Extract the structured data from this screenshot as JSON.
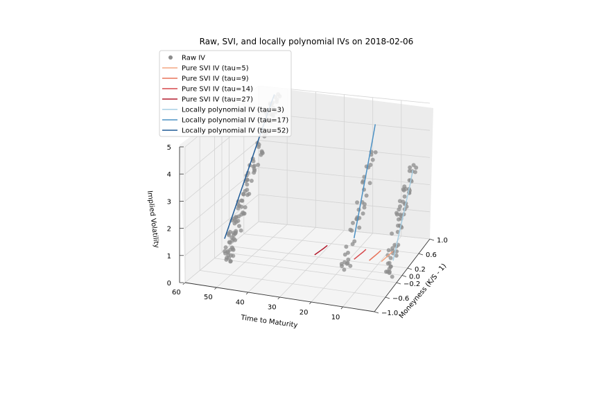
{
  "chart_data": {
    "type": "scatter",
    "title": "Raw, SVI, and locally polynomial IVs on 2018-02-06",
    "xlabel": "Time to Maturity",
    "ylabel": "Moneyness (K/S - 1)",
    "zlabel": "Implied Volatility",
    "x_ticks": [
      "60",
      "50",
      "40",
      "30",
      "20",
      "10"
    ],
    "y_ticks": [
      "−1.0",
      "−0.6",
      "−0.2",
      "0.0",
      "0.2",
      "0.6",
      "1.0"
    ],
    "z_ticks": [
      "0",
      "1",
      "2",
      "3",
      "4",
      "5"
    ],
    "x_tick_values": [
      60,
      50,
      40,
      30,
      20,
      10
    ],
    "y_tick_values": [
      -1.0,
      -0.6,
      -0.2,
      0.0,
      0.2,
      0.6,
      1.0
    ],
    "z_tick_values": [
      0,
      1,
      2,
      3,
      4,
      5
    ],
    "xlim": [
      60,
      0
    ],
    "ylim": [
      -1.0,
      1.0
    ],
    "zlim": [
      0,
      5
    ],
    "grid": true,
    "legend_position": "upper-left",
    "legend": [
      {
        "label": "Raw IV",
        "kind": "marker",
        "color": "#8c8c8c"
      },
      {
        "label": "Pure SVI IV (tau=5)",
        "kind": "line",
        "color": "#f4a582"
      },
      {
        "label": "Pure SVI IV (tau=9)",
        "kind": "line",
        "color": "#e8735a"
      },
      {
        "label": "Pure SVI IV (tau=14)",
        "kind": "line",
        "color": "#d6464a"
      },
      {
        "label": "Pure SVI IV (tau=27)",
        "kind": "line",
        "color": "#b2182b"
      },
      {
        "label": "Locally polynomial IV (tau=3)",
        "kind": "line",
        "color": "#a6cee3"
      },
      {
        "label": "Locally polynomial IV (tau=17)",
        "kind": "line",
        "color": "#4a90c4"
      },
      {
        "label": "Locally polynomial IV (tau=52)",
        "kind": "line",
        "color": "#1f5a96"
      }
    ],
    "series": [
      {
        "name": "Pure SVI IV (tau=5)",
        "tau": 5,
        "color": "#f4a582",
        "moneyness": [
          -0.2,
          -0.1,
          0.0,
          0.1,
          0.2
        ],
        "iv": [
          0.7,
          0.66,
          0.62,
          0.58,
          0.55
        ]
      },
      {
        "name": "Pure SVI IV (tau=9)",
        "tau": 9,
        "color": "#e8735a",
        "moneyness": [
          -0.2,
          -0.1,
          0.0,
          0.1,
          0.2
        ],
        "iv": [
          0.68,
          0.64,
          0.6,
          0.56,
          0.53
        ]
      },
      {
        "name": "Pure SVI IV (tau=14)",
        "tau": 14,
        "color": "#d6464a",
        "moneyness": [
          -0.2,
          -0.1,
          0.0,
          0.1,
          0.2
        ],
        "iv": [
          0.65,
          0.61,
          0.57,
          0.53,
          0.5
        ]
      },
      {
        "name": "Pure SVI IV (tau=27)",
        "tau": 27,
        "color": "#b2182b",
        "moneyness": [
          -0.2,
          -0.1,
          0.0,
          0.1,
          0.2
        ],
        "iv": [
          0.62,
          0.58,
          0.54,
          0.5,
          0.47
        ]
      },
      {
        "name": "Locally polynomial IV (tau=3)",
        "tau": 3,
        "color": "#a6cee3",
        "moneyness": [
          0.0,
          0.15,
          0.3,
          0.45,
          0.6,
          0.7
        ],
        "iv": [
          0.5,
          1.0,
          1.5,
          2.0,
          2.5,
          2.9
        ]
      },
      {
        "name": "Locally polynomial IV (tau=17)",
        "tau": 17,
        "color": "#4a90c4",
        "moneyness": [
          0.1,
          0.25,
          0.4,
          0.55,
          0.7,
          0.8
        ],
        "iv": [
          1.0,
          1.7,
          2.4,
          3.1,
          3.8,
          4.3
        ]
      },
      {
        "name": "Locally polynomial IV (tau=52)",
        "tau": 52,
        "color": "#1f5a96",
        "moneyness": [
          -0.6,
          -0.3,
          0.0,
          0.3,
          0.6,
          0.8
        ],
        "iv": [
          1.3,
          2.1,
          2.9,
          3.7,
          4.5,
          5.0
        ]
      }
    ],
    "raw_iv_clusters": [
      {
        "tau": 52,
        "moneyness_range": [
          -0.55,
          0.9
        ],
        "iv_range": [
          0.5,
          5.1
        ],
        "count": 110
      },
      {
        "tau": 17,
        "moneyness_range": [
          -0.2,
          0.75
        ],
        "iv_range": [
          0.3,
          3.5
        ],
        "count": 40
      },
      {
        "tau": 3,
        "moneyness_range": [
          -0.2,
          0.7
        ],
        "iv_range": [
          0.2,
          3.2
        ],
        "count": 60
      }
    ]
  }
}
